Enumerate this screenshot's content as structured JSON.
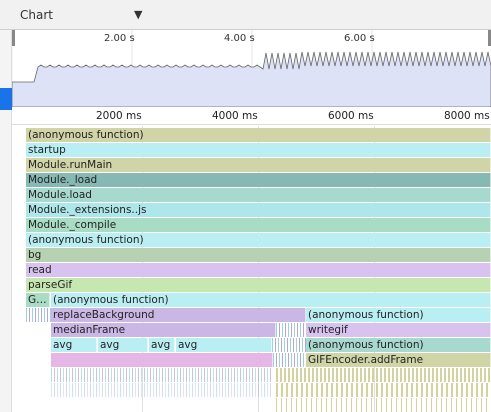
{
  "toolbar": {
    "view_label": "Chart",
    "dropdown_icon": "chevron-down-icon"
  },
  "overview": {
    "ticks": [
      "2.00 s",
      "4.00 s",
      "6.00 s"
    ]
  },
  "ruler": {
    "ticks": [
      "2000 ms",
      "4000 ms",
      "6000 ms",
      "8000 ms"
    ]
  },
  "flame": {
    "rows": [
      "(anonymous function)",
      "startup",
      "Module.runMain",
      "Module._load",
      "Module.load",
      "Module._extensions..js",
      "Module._compile",
      "(anonymous function)",
      "bg",
      "read",
      "parseGif"
    ],
    "row11": {
      "g": "G…",
      "anon": "(anonymous function)"
    },
    "row12": {
      "replace": "replaceBackground",
      "anon": "(anonymous function)"
    },
    "row13": {
      "median": "medianFrame",
      "writegif": "writegif"
    },
    "row14": {
      "avg1": "avg",
      "avg2": "avg",
      "avg3": "avg",
      "avg4": "avg",
      "anon": "(anonymous function)"
    },
    "row15": {
      "encoder": "GIFEncoder.addFrame"
    }
  },
  "colors": {
    "selection": "#1a73e8",
    "overview_fill": "#dde2f7",
    "overview_line": "#666666"
  }
}
